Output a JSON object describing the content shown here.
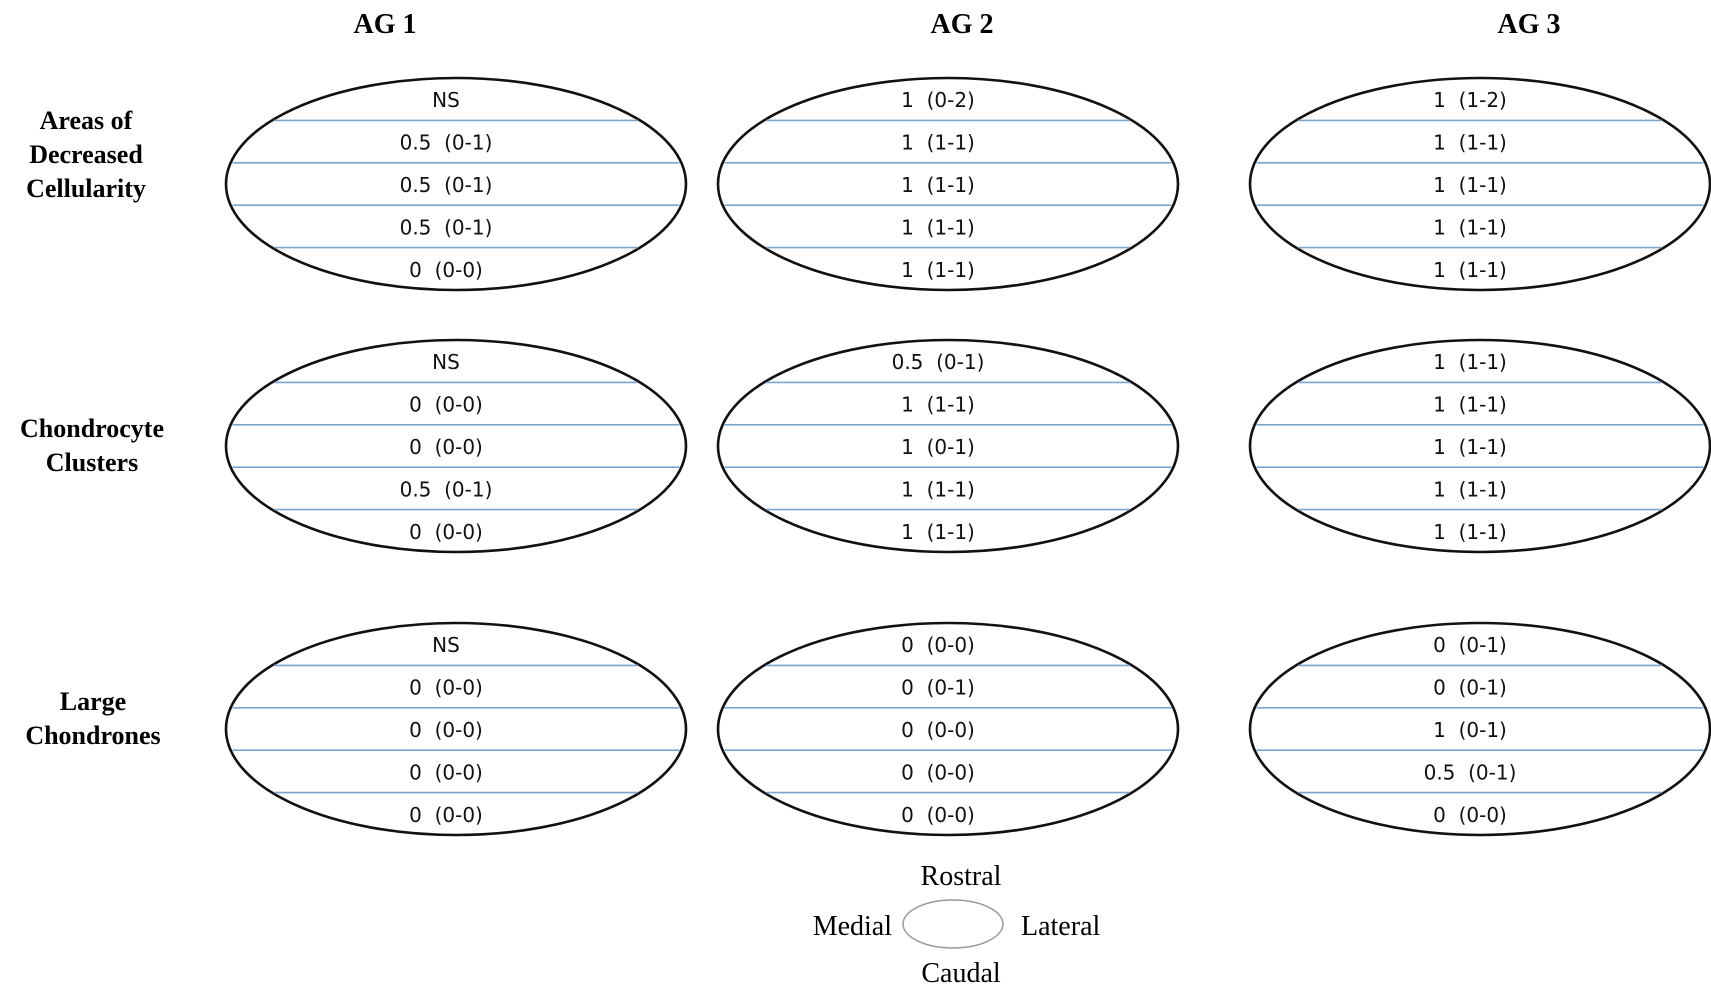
{
  "columns": [
    "AG 1",
    "AG 2",
    "AG 3"
  ],
  "rows": [
    {
      "label": [
        "Areas of",
        "Decreased",
        "Cellularity"
      ]
    },
    {
      "label": [
        "Chondrocyte",
        "Clusters"
      ]
    },
    {
      "label": [
        "Large",
        "Chondrones"
      ]
    }
  ],
  "cells": [
    [
      [
        "NS",
        "0.5  (0-1)",
        "0.5  (0-1)",
        "0.5  (0-1)",
        "0  (0-0)"
      ],
      [
        "1  (0-2)",
        "1  (1-1)",
        "1  (1-1)",
        "1  (1-1)",
        "1  (1-1)"
      ],
      [
        "1  (1-2)",
        "1  (1-1)",
        "1  (1-1)",
        "1  (1-1)",
        "1  (1-1)"
      ]
    ],
    [
      [
        "NS",
        "0  (0-0)",
        "0  (0-0)",
        "0.5  (0-1)",
        "0  (0-0)"
      ],
      [
        "0.5  (0-1)",
        "1  (1-1)",
        "1  (0-1)",
        "1  (1-1)",
        "1  (1-1)"
      ],
      [
        "1  (1-1)",
        "1  (1-1)",
        "1  (1-1)",
        "1  (1-1)",
        "1  (1-1)"
      ]
    ],
    [
      [
        "NS",
        "0  (0-0)",
        "0  (0-0)",
        "0  (0-0)",
        "0  (0-0)"
      ],
      [
        "0  (0-0)",
        "0  (0-1)",
        "0  (0-0)",
        "0  (0-0)",
        "0  (0-0)"
      ],
      [
        "0  (0-1)",
        "0  (0-1)",
        "1  (0-1)",
        "0.5  (0-1)",
        "0  (0-0)"
      ]
    ]
  ],
  "legend": {
    "top": "Rostral",
    "left": "Medial",
    "right": "Lateral",
    "bottom": "Caudal"
  },
  "colors": {
    "band_line": "#7aa6cc",
    "outline": "#111111"
  }
}
